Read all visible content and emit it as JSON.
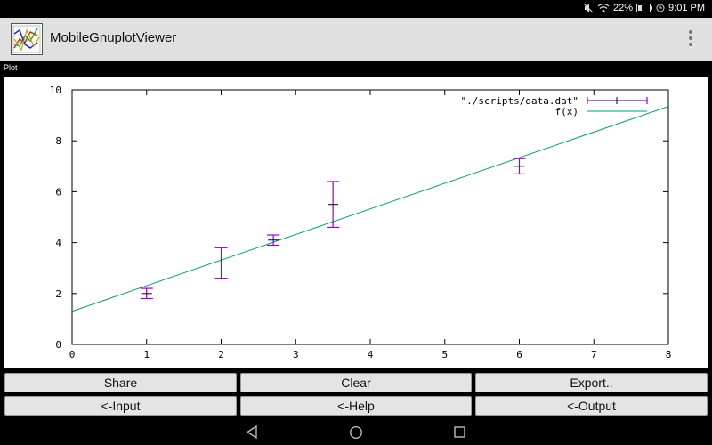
{
  "status": {
    "battery": "22%",
    "time": "9:01 PM"
  },
  "app": {
    "title": "MobileGnuplotViewer",
    "icon": "gnuplot-app-icon"
  },
  "plot_section_label": "Plot",
  "chart_data": {
    "type": "scatter",
    "xlim": [
      0,
      8
    ],
    "ylim": [
      0,
      10
    ],
    "xticks": [
      "0",
      "1",
      "2",
      "3",
      "4",
      "5",
      "6",
      "7",
      "8"
    ],
    "yticks": [
      "0",
      "2",
      "4",
      "6",
      "8",
      "10"
    ],
    "grid": false,
    "legend_position": "top-right",
    "series": [
      {
        "name": "\"./scripts/data.dat\"",
        "style": "yerrorbars",
        "color": "#9400d3",
        "points": [
          {
            "x": 1.0,
            "y": 2.0,
            "ylow": 1.8,
            "yhigh": 2.2
          },
          {
            "x": 2.0,
            "y": 3.2,
            "ylow": 2.6,
            "yhigh": 3.8
          },
          {
            "x": 2.7,
            "y": 4.1,
            "ylow": 3.9,
            "yhigh": 4.3
          },
          {
            "x": 3.5,
            "y": 5.5,
            "ylow": 4.6,
            "yhigh": 6.4
          },
          {
            "x": 6.0,
            "y": 7.0,
            "ylow": 6.7,
            "yhigh": 7.3
          }
        ]
      },
      {
        "name": "f(x)",
        "style": "line",
        "color": "#009e73",
        "points": [
          {
            "x": 0,
            "y": 1.3
          },
          {
            "x": 8,
            "y": 9.35
          }
        ]
      }
    ]
  },
  "buttons": {
    "share": "Share",
    "clear": "Clear",
    "export": "Export..",
    "input": "<-Input",
    "help": "<-Help",
    "output": "<-Output"
  },
  "navigation": {
    "back": "back-icon",
    "home": "home-icon",
    "recents": "recents-icon"
  }
}
